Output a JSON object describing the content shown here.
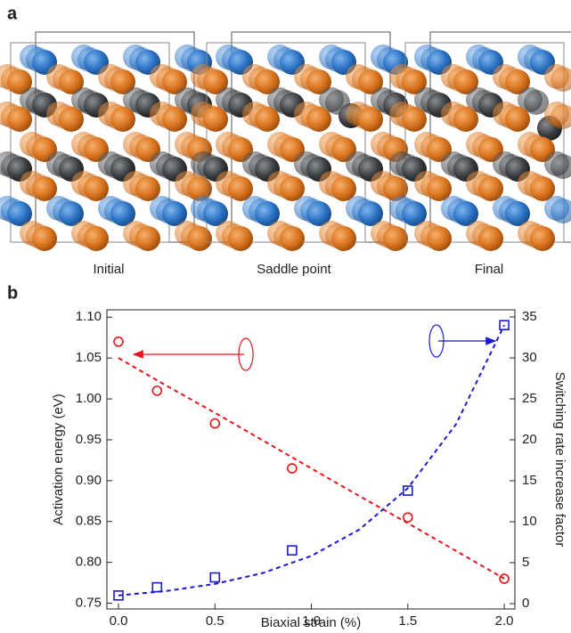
{
  "panel_a": {
    "label": "a",
    "captions": [
      "Initial",
      "Saddle point",
      "Final"
    ]
  },
  "panel_b": {
    "label": "b"
  },
  "chart_data": {
    "type": "scatter",
    "xlabel": "Biaxial strain (%)",
    "ylabel": "Activation energy (eV)",
    "y2label": "Switching rate increase factor",
    "xlim": [
      -0.06,
      2.055
    ],
    "xticks": [
      {
        "value": 0,
        "label": "0.0"
      },
      0.5,
      {
        "value": 1,
        "label": "1.0"
      },
      1.5,
      {
        "value": 2,
        "label": "2.0"
      }
    ],
    "ylim": [
      0.743,
      1.109
    ],
    "yticks": [
      0.75,
      {
        "value": 0.8,
        "label": "0.80"
      },
      0.85,
      {
        "value": 0.9,
        "label": "0.90"
      },
      0.95,
      {
        "value": 1.0,
        "label": "1.00"
      },
      1.05,
      {
        "value": 1.1,
        "label": "1.10"
      }
    ],
    "y2lim": [
      -0.65,
      35.87
    ],
    "y2ticks": [
      0,
      5,
      10,
      15,
      20,
      25,
      30,
      35
    ],
    "series": [
      {
        "style": "circle",
        "color": "#e8141a",
        "axis": "y",
        "x": [
          0,
          0.2,
          0.5,
          0.9,
          1.5,
          2.0
        ],
        "values": [
          1.07,
          1.01,
          0.97,
          0.915,
          0.855,
          0.78
        ]
      },
      {
        "style": "dashed",
        "color": "#e8141a",
        "axis": "y",
        "x": [
          0,
          0.25,
          0.5,
          0.75,
          1.0,
          1.25,
          1.5,
          1.75,
          2.0
        ],
        "values": [
          1.05,
          1.016,
          0.983,
          0.949,
          0.915,
          0.881,
          0.848,
          0.814,
          0.78
        ]
      },
      {
        "style": "square",
        "color": "#1a1ad6",
        "axis": "y2",
        "x": [
          0,
          0.2,
          0.5,
          0.9,
          1.5,
          2.0
        ],
        "values": [
          1,
          2,
          3.2,
          6.5,
          13.8,
          34
        ]
      },
      {
        "style": "dashed",
        "color": "#1a1ad6",
        "axis": "y2",
        "x": [
          0,
          0.25,
          0.5,
          0.75,
          1.0,
          1.25,
          1.5,
          1.75,
          2.0
        ],
        "values": [
          1,
          1.55,
          2.41,
          3.75,
          5.83,
          9.06,
          14.1,
          21.9,
          34
        ]
      }
    ]
  }
}
